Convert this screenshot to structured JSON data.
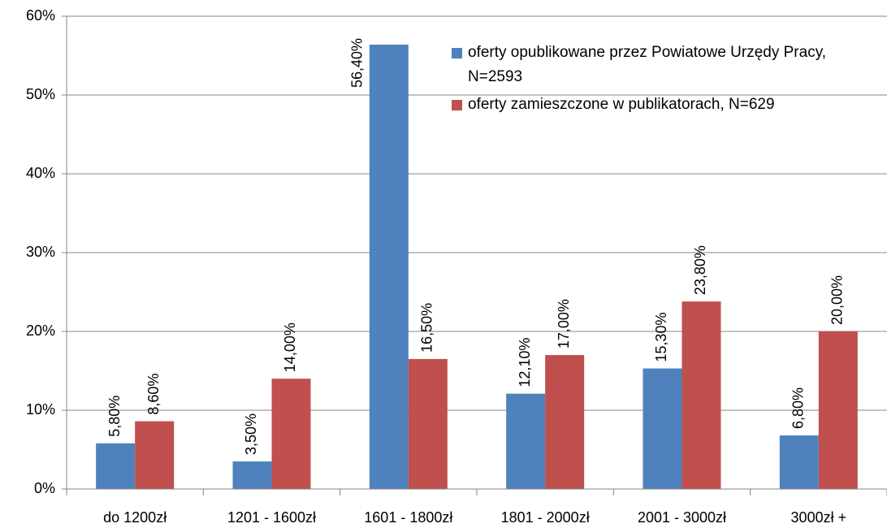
{
  "chart_data": {
    "type": "bar",
    "categories": [
      "do 1200zł",
      "1201 - 1600zł",
      "1601 - 1800zł",
      "1801 - 2000zł",
      "2001 - 3000zł",
      "3000zł +"
    ],
    "series": [
      {
        "name": "oferty opublikowane przez Powiatowe Urzędy Pracy, N=2593",
        "color": "#4f81bd",
        "values": [
          5.8,
          3.5,
          56.4,
          12.1,
          15.3,
          6.8
        ],
        "value_labels": [
          "5,80%",
          "3,50%",
          "56,40%",
          "12,10%",
          "15,30%",
          "6,80%"
        ]
      },
      {
        "name": "oferty zamieszczone w publikatorach, N=629",
        "color": "#c0504d",
        "values": [
          8.6,
          14.0,
          16.5,
          17.0,
          23.8,
          20.0
        ],
        "value_labels": [
          "8,60%",
          "14,00%",
          "16,50%",
          "17,00%",
          "23,80%",
          "20,00%"
        ]
      }
    ],
    "ylim": [
      0,
      60
    ],
    "yticks": [
      {
        "value": 0,
        "label": "0%"
      },
      {
        "value": 10,
        "label": "10%"
      },
      {
        "value": 20,
        "label": "20%"
      },
      {
        "value": 30,
        "label": "30%"
      },
      {
        "value": 40,
        "label": "40%"
      },
      {
        "value": 50,
        "label": "50%"
      },
      {
        "value": 60,
        "label": "60%"
      }
    ],
    "grid": true,
    "legend": "top-right"
  }
}
